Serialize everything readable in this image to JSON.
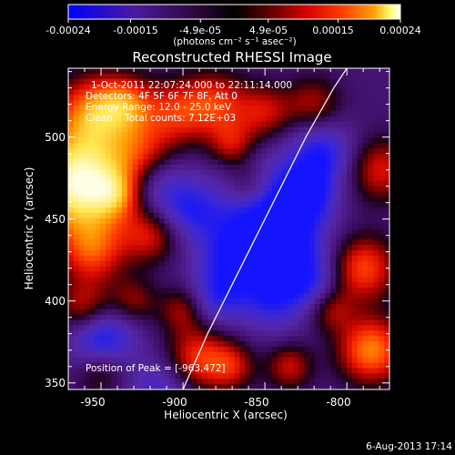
{
  "colorbar": {
    "tick_labels": [
      "-0.00024",
      "-0.00015",
      "-4.9e-05",
      "4.9e-05",
      "0.00015",
      "0.00024"
    ],
    "tick_values": [
      -0.00024,
      -0.00015,
      -4.9e-05,
      4.9e-05,
      0.00015,
      0.00024
    ],
    "range": [
      -0.00024,
      0.00024
    ],
    "units_label": "(photons cm⁻² s⁻¹ asec⁻²)",
    "colors": [
      "#0000ff",
      "#5a1aa0",
      "#3c0c58",
      "#000000",
      "#3a0000",
      "#c00000",
      "#ff2a00",
      "#ff9a00",
      "#ffff80",
      "#ffffff"
    ]
  },
  "chart_data": {
    "type": "heatmap",
    "title": "Reconstructed RHESSI Image",
    "xlabel": "Heliocentric X (arcsec)",
    "ylabel": "Heliocentric Y (arcsec)",
    "xlim": [
      -970,
      -774
    ],
    "ylim": [
      346,
      542
    ],
    "x_ticks": [
      -950,
      -900,
      -850,
      -800
    ],
    "x_tick_labels": [
      "-950",
      "-900",
      "-850",
      "-800"
    ],
    "y_ticks": [
      350,
      400,
      450,
      500
    ],
    "y_tick_labels": [
      "350",
      "400",
      "450",
      "500"
    ],
    "info_lines": [
      "1-Oct-2011 22:07:24.000 to 22:11:14.000",
      "Detectors: 4F 5F 6F 7F 8F, Att 0",
      "Energy Range: 12.0 - 25.0 keV",
      "Clean    Total counts: 7.12E+03"
    ],
    "peak_label": "Position of Peak = [-963,472]",
    "peak": [
      -963,
      472
    ],
    "limb": [
      [
        -900,
        346
      ],
      [
        -885,
        380
      ],
      [
        -870,
        410
      ],
      [
        -855,
        440
      ],
      [
        -840,
        470
      ],
      [
        -825,
        500
      ],
      [
        -808,
        530
      ],
      [
        -800,
        542
      ]
    ],
    "hot_spots": [
      [
        -963,
        472,
        2.6,
        22
      ],
      [
        -955,
        515,
        1.4,
        16
      ],
      [
        -935,
        520,
        1.1,
        12
      ],
      [
        -905,
        515,
        1.0,
        14
      ],
      [
        -880,
        520,
        1.1,
        14
      ],
      [
        -870,
        495,
        0.9,
        10
      ],
      [
        -925,
        490,
        0.9,
        14
      ],
      [
        -955,
        430,
        1.1,
        14
      ],
      [
        -920,
        440,
        0.9,
        12
      ],
      [
        -960,
        395,
        1.0,
        12
      ],
      [
        -950,
        360,
        1.0,
        12
      ],
      [
        -930,
        400,
        0.7,
        10
      ],
      [
        -890,
        365,
        1.2,
        14
      ],
      [
        -900,
        395,
        0.8,
        10
      ],
      [
        -850,
        515,
        0.9,
        12
      ],
      [
        -820,
        520,
        0.8,
        12
      ],
      [
        -860,
        470,
        0.8,
        10
      ],
      [
        -790,
        420,
        1.3,
        14
      ],
      [
        -780,
        480,
        1.0,
        14
      ],
      [
        -785,
        370,
        1.6,
        14
      ],
      [
        -835,
        360,
        0.9,
        10
      ],
      [
        -870,
        360,
        0.8,
        10
      ],
      [
        -810,
        395,
        0.8,
        10
      ],
      [
        -940,
        465,
        0.8,
        10
      ]
    ],
    "cold_spots": [
      [
        -850,
        455,
        1.3,
        22
      ],
      [
        -835,
        430,
        1.0,
        16
      ],
      [
        -815,
        490,
        1.1,
        14
      ],
      [
        -825,
        465,
        1.0,
        12
      ],
      [
        -950,
        375,
        1.6,
        14
      ],
      [
        -915,
        470,
        0.9,
        14
      ],
      [
        -915,
        345,
        0.8,
        14
      ],
      [
        -870,
        425,
        1.0,
        16
      ],
      [
        -845,
        400,
        0.9,
        14
      ],
      [
        -880,
        400,
        0.8,
        12
      ],
      [
        -895,
        455,
        0.8,
        12
      ],
      [
        -820,
        410,
        0.7,
        12
      ]
    ]
  },
  "footer": {
    "date": "6-Aug-2013 17:14"
  }
}
